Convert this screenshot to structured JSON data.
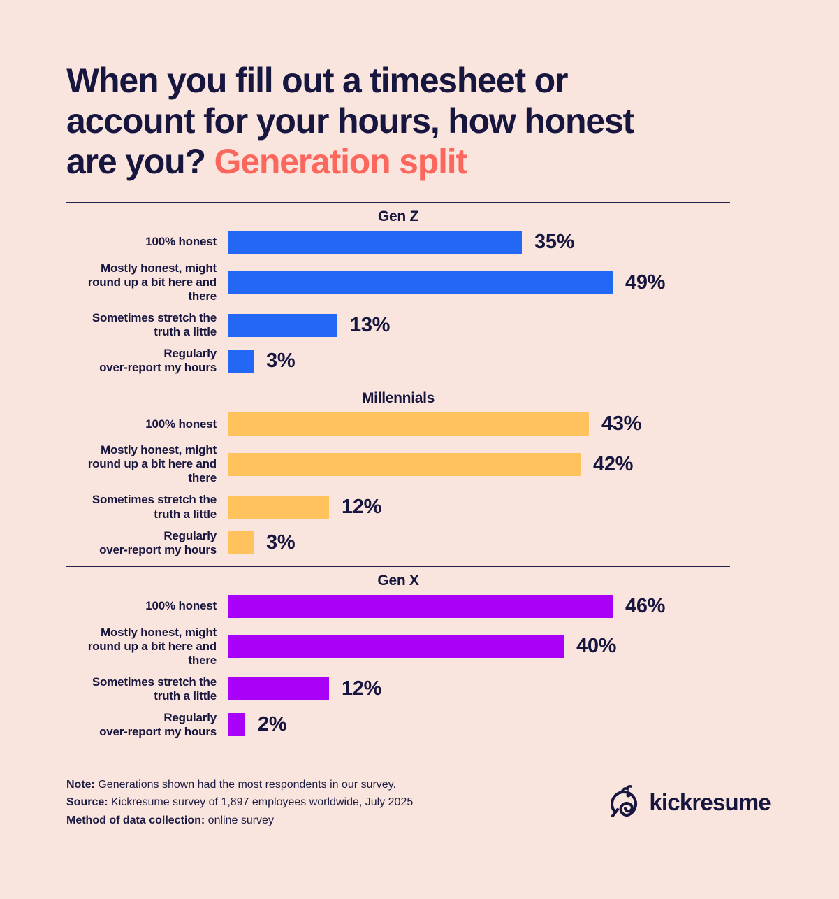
{
  "title": {
    "lines": [
      "When you fill out a timesheet or",
      "account for your hours, how honest",
      "are you?"
    ],
    "highlight": "Generation split"
  },
  "colors": {
    "background": "#FAE4DE",
    "text": "#16163F",
    "accent": "#FB675C",
    "divider": "#23234D",
    "gen_z_bar": "#2368F5",
    "millennials_bar": "#FFC25C",
    "gen_x_bar": "#A900F7"
  },
  "chart_data": {
    "type": "bar",
    "orientation": "horizontal",
    "value_suffix": "%",
    "xlim": [
      0,
      50
    ],
    "grid": false,
    "categories": [
      "100% honest",
      "Mostly honest, might\nround up a bit here and\nthere",
      "Sometimes stretch the\ntruth a little",
      "Regularly\nover-report my hours"
    ],
    "series": [
      {
        "name": "Gen Z",
        "color": "#2368F5",
        "values": [
          35,
          49,
          13,
          3
        ]
      },
      {
        "name": "Millennials",
        "color": "#FFC25C",
        "values": [
          43,
          42,
          12,
          3
        ]
      },
      {
        "name": "Gen X",
        "color": "#A900F7",
        "values": [
          46,
          40,
          12,
          2
        ]
      }
    ]
  },
  "footer": {
    "note_label": "Note:",
    "note_text": "Generations shown had the most respondents in our survey.",
    "source_label": "Source:",
    "source_text": "Kickresume survey of 1,897 employees worldwide, July 2025",
    "method_label": "Method of data collection:",
    "method_text": "online survey"
  },
  "logo": {
    "text": "kickresume"
  }
}
